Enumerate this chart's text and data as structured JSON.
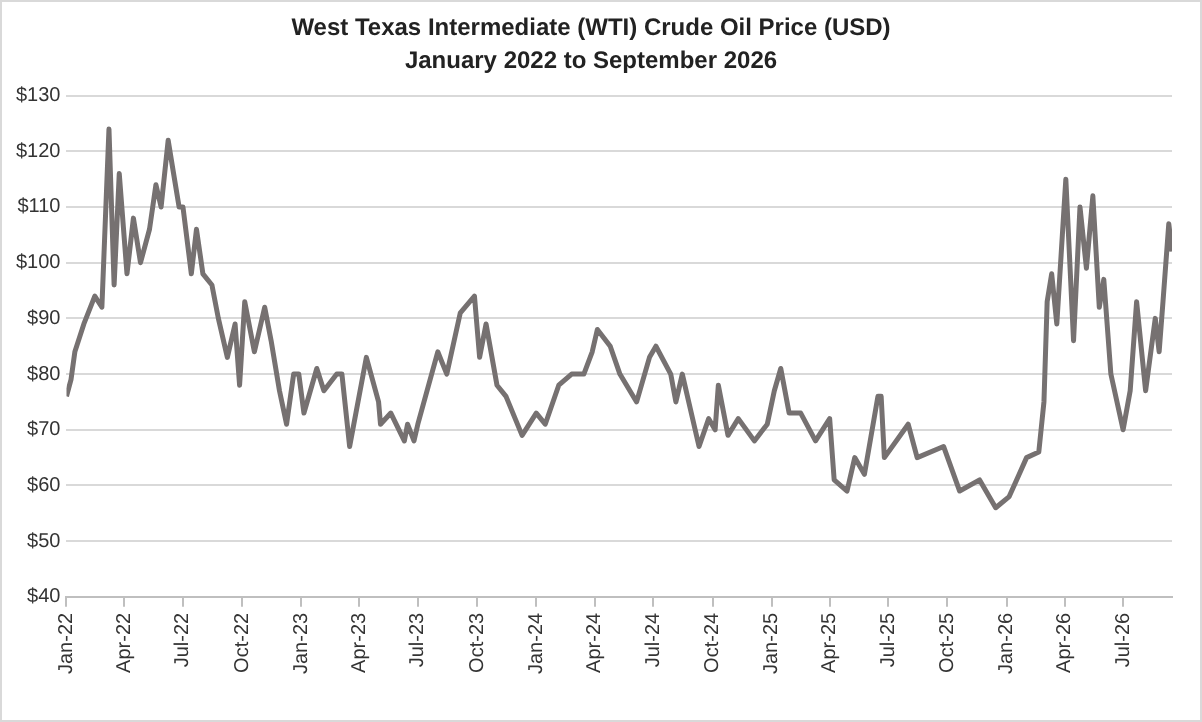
{
  "chart_data": {
    "type": "line",
    "title": "West Texas Intermediate (WTI) Crude Oil Price (USD)",
    "subtitle": "January 2022 to September 2026",
    "x": [
      "2022-01-01",
      "2022-01-08",
      "2022-01-14",
      "2022-01-28",
      "2022-02-14",
      "2022-02-25",
      "2022-03-08",
      "2022-03-16",
      "2022-03-24",
      "2022-04-05",
      "2022-04-15",
      "2022-04-26",
      "2022-05-10",
      "2022-05-20",
      "2022-05-28",
      "2022-06-08",
      "2022-06-15",
      "2022-06-25",
      "2022-07-01",
      "2022-07-14",
      "2022-07-22",
      "2022-08-01",
      "2022-08-15",
      "2022-08-25",
      "2022-09-08",
      "2022-09-20",
      "2022-09-27",
      "2022-10-05",
      "2022-10-20",
      "2022-11-05",
      "2022-11-15",
      "2022-11-28",
      "2022-12-09",
      "2022-12-20",
      "2022-12-28",
      "2023-01-05",
      "2023-01-25",
      "2023-02-05",
      "2023-02-25",
      "2023-03-05",
      "2023-03-17",
      "2023-04-12",
      "2023-05-01",
      "2023-05-04",
      "2023-05-20",
      "2023-06-10",
      "2023-06-15",
      "2023-06-25",
      "2023-07-01",
      "2023-08-01",
      "2023-08-15",
      "2023-09-05",
      "2023-09-27",
      "2023-10-05",
      "2023-10-15",
      "2023-11-01",
      "2023-11-15",
      "2023-12-10",
      "2024-01-01",
      "2024-01-15",
      "2024-02-05",
      "2024-02-25",
      "2024-03-15",
      "2024-03-28",
      "2024-04-05",
      "2024-04-25",
      "2024-05-10",
      "2024-06-05",
      "2024-06-25",
      "2024-07-05",
      "2024-07-28",
      "2024-08-05",
      "2024-08-15",
      "2024-09-10",
      "2024-09-25",
      "2024-10-05",
      "2024-10-10",
      "2024-10-25",
      "2024-11-10",
      "2024-12-05",
      "2024-12-25",
      "2025-01-05",
      "2025-01-15",
      "2025-01-28",
      "2025-02-15",
      "2025-03-10",
      "2025-04-01",
      "2025-04-08",
      "2025-04-28",
      "2025-05-10",
      "2025-05-25",
      "2025-06-15",
      "2025-06-20",
      "2025-06-25",
      "2025-08-01",
      "2025-08-15",
      "2025-09-25",
      "2025-10-20",
      "2025-11-20",
      "2025-12-15",
      "2026-01-05",
      "2026-02-01",
      "2026-02-20",
      "2026-02-28",
      "2026-03-05",
      "2026-03-12",
      "2026-03-20",
      "2026-04-03",
      "2026-04-15",
      "2026-04-25",
      "2026-05-05",
      "2026-05-15",
      "2026-05-25",
      "2026-06-01",
      "2026-06-12",
      "2026-07-01",
      "2026-07-12",
      "2026-07-22",
      "2026-08-05",
      "2026-08-20",
      "2026-08-26",
      "2026-09-01",
      "2026-09-10",
      "2026-09-15"
    ],
    "series": [
      {
        "color": "#767171",
        "values": [
          76,
          79,
          84,
          89,
          94,
          92,
          124,
          96,
          116,
          98,
          108,
          100,
          106,
          114,
          110,
          122,
          117,
          110,
          110,
          98,
          106,
          98,
          96,
          90,
          83,
          89,
          78,
          93,
          84,
          92,
          86,
          77,
          71,
          80,
          80,
          73,
          81,
          77,
          80,
          80,
          67,
          83,
          75,
          71,
          73,
          68,
          71,
          68,
          71,
          84,
          80,
          91,
          94,
          83,
          89,
          78,
          76,
          69,
          73,
          71,
          78,
          80,
          80,
          84,
          88,
          85,
          80,
          75,
          83,
          85,
          80,
          75,
          80,
          67,
          72,
          70,
          78,
          69,
          72,
          68,
          71,
          77,
          81,
          73,
          73,
          68,
          72,
          61,
          59,
          65,
          62,
          76,
          76,
          65,
          71,
          65,
          67,
          59,
          61,
          56,
          58,
          65,
          66,
          75,
          93,
          98,
          89,
          115,
          86,
          110,
          99,
          112,
          92,
          97,
          80,
          70,
          77,
          93,
          77,
          90,
          84,
          93,
          107,
          102
        ]
      }
    ],
    "xlim": [
      "2022-01-01",
      "2026-09-15"
    ],
    "xticks": [
      {
        "value": "2022-01-01",
        "label": "Jan-22"
      },
      {
        "value": "2022-04-01",
        "label": "Apr-22"
      },
      {
        "value": "2022-07-01",
        "label": "Jul-22"
      },
      {
        "value": "2022-10-01",
        "label": "Oct-22"
      },
      {
        "value": "2023-01-01",
        "label": "Jan-23"
      },
      {
        "value": "2023-04-01",
        "label": "Apr-23"
      },
      {
        "value": "2023-07-01",
        "label": "Jul-23"
      },
      {
        "value": "2023-10-01",
        "label": "Oct-23"
      },
      {
        "value": "2024-01-01",
        "label": "Jan-24"
      },
      {
        "value": "2024-04-01",
        "label": "Apr-24"
      },
      {
        "value": "2024-07-01",
        "label": "Jul-24"
      },
      {
        "value": "2024-10-01",
        "label": "Oct-24"
      },
      {
        "value": "2025-01-01",
        "label": "Jan-25"
      },
      {
        "value": "2025-04-01",
        "label": "Apr-25"
      },
      {
        "value": "2025-07-01",
        "label": "Jul-25"
      },
      {
        "value": "2025-10-01",
        "label": "Oct-25"
      },
      {
        "value": "2026-01-01",
        "label": "Jan-26"
      },
      {
        "value": "2026-04-01",
        "label": "Apr-26"
      },
      {
        "value": "2026-07-01",
        "label": "Jul-26"
      }
    ],
    "ylim": [
      40,
      130
    ],
    "yticks": [
      {
        "value": 40,
        "label": "$40"
      },
      {
        "value": 50,
        "label": "$50"
      },
      {
        "value": 60,
        "label": "$60"
      },
      {
        "value": 70,
        "label": "$70"
      },
      {
        "value": 80,
        "label": "$80"
      },
      {
        "value": 90,
        "label": "$90"
      },
      {
        "value": 100,
        "label": "$100"
      },
      {
        "value": 110,
        "label": "$110"
      },
      {
        "value": 120,
        "label": "$120"
      },
      {
        "value": 130,
        "label": "$130"
      }
    ],
    "grid": "y",
    "marker": "none",
    "line_style": "solid",
    "legend": false
  }
}
